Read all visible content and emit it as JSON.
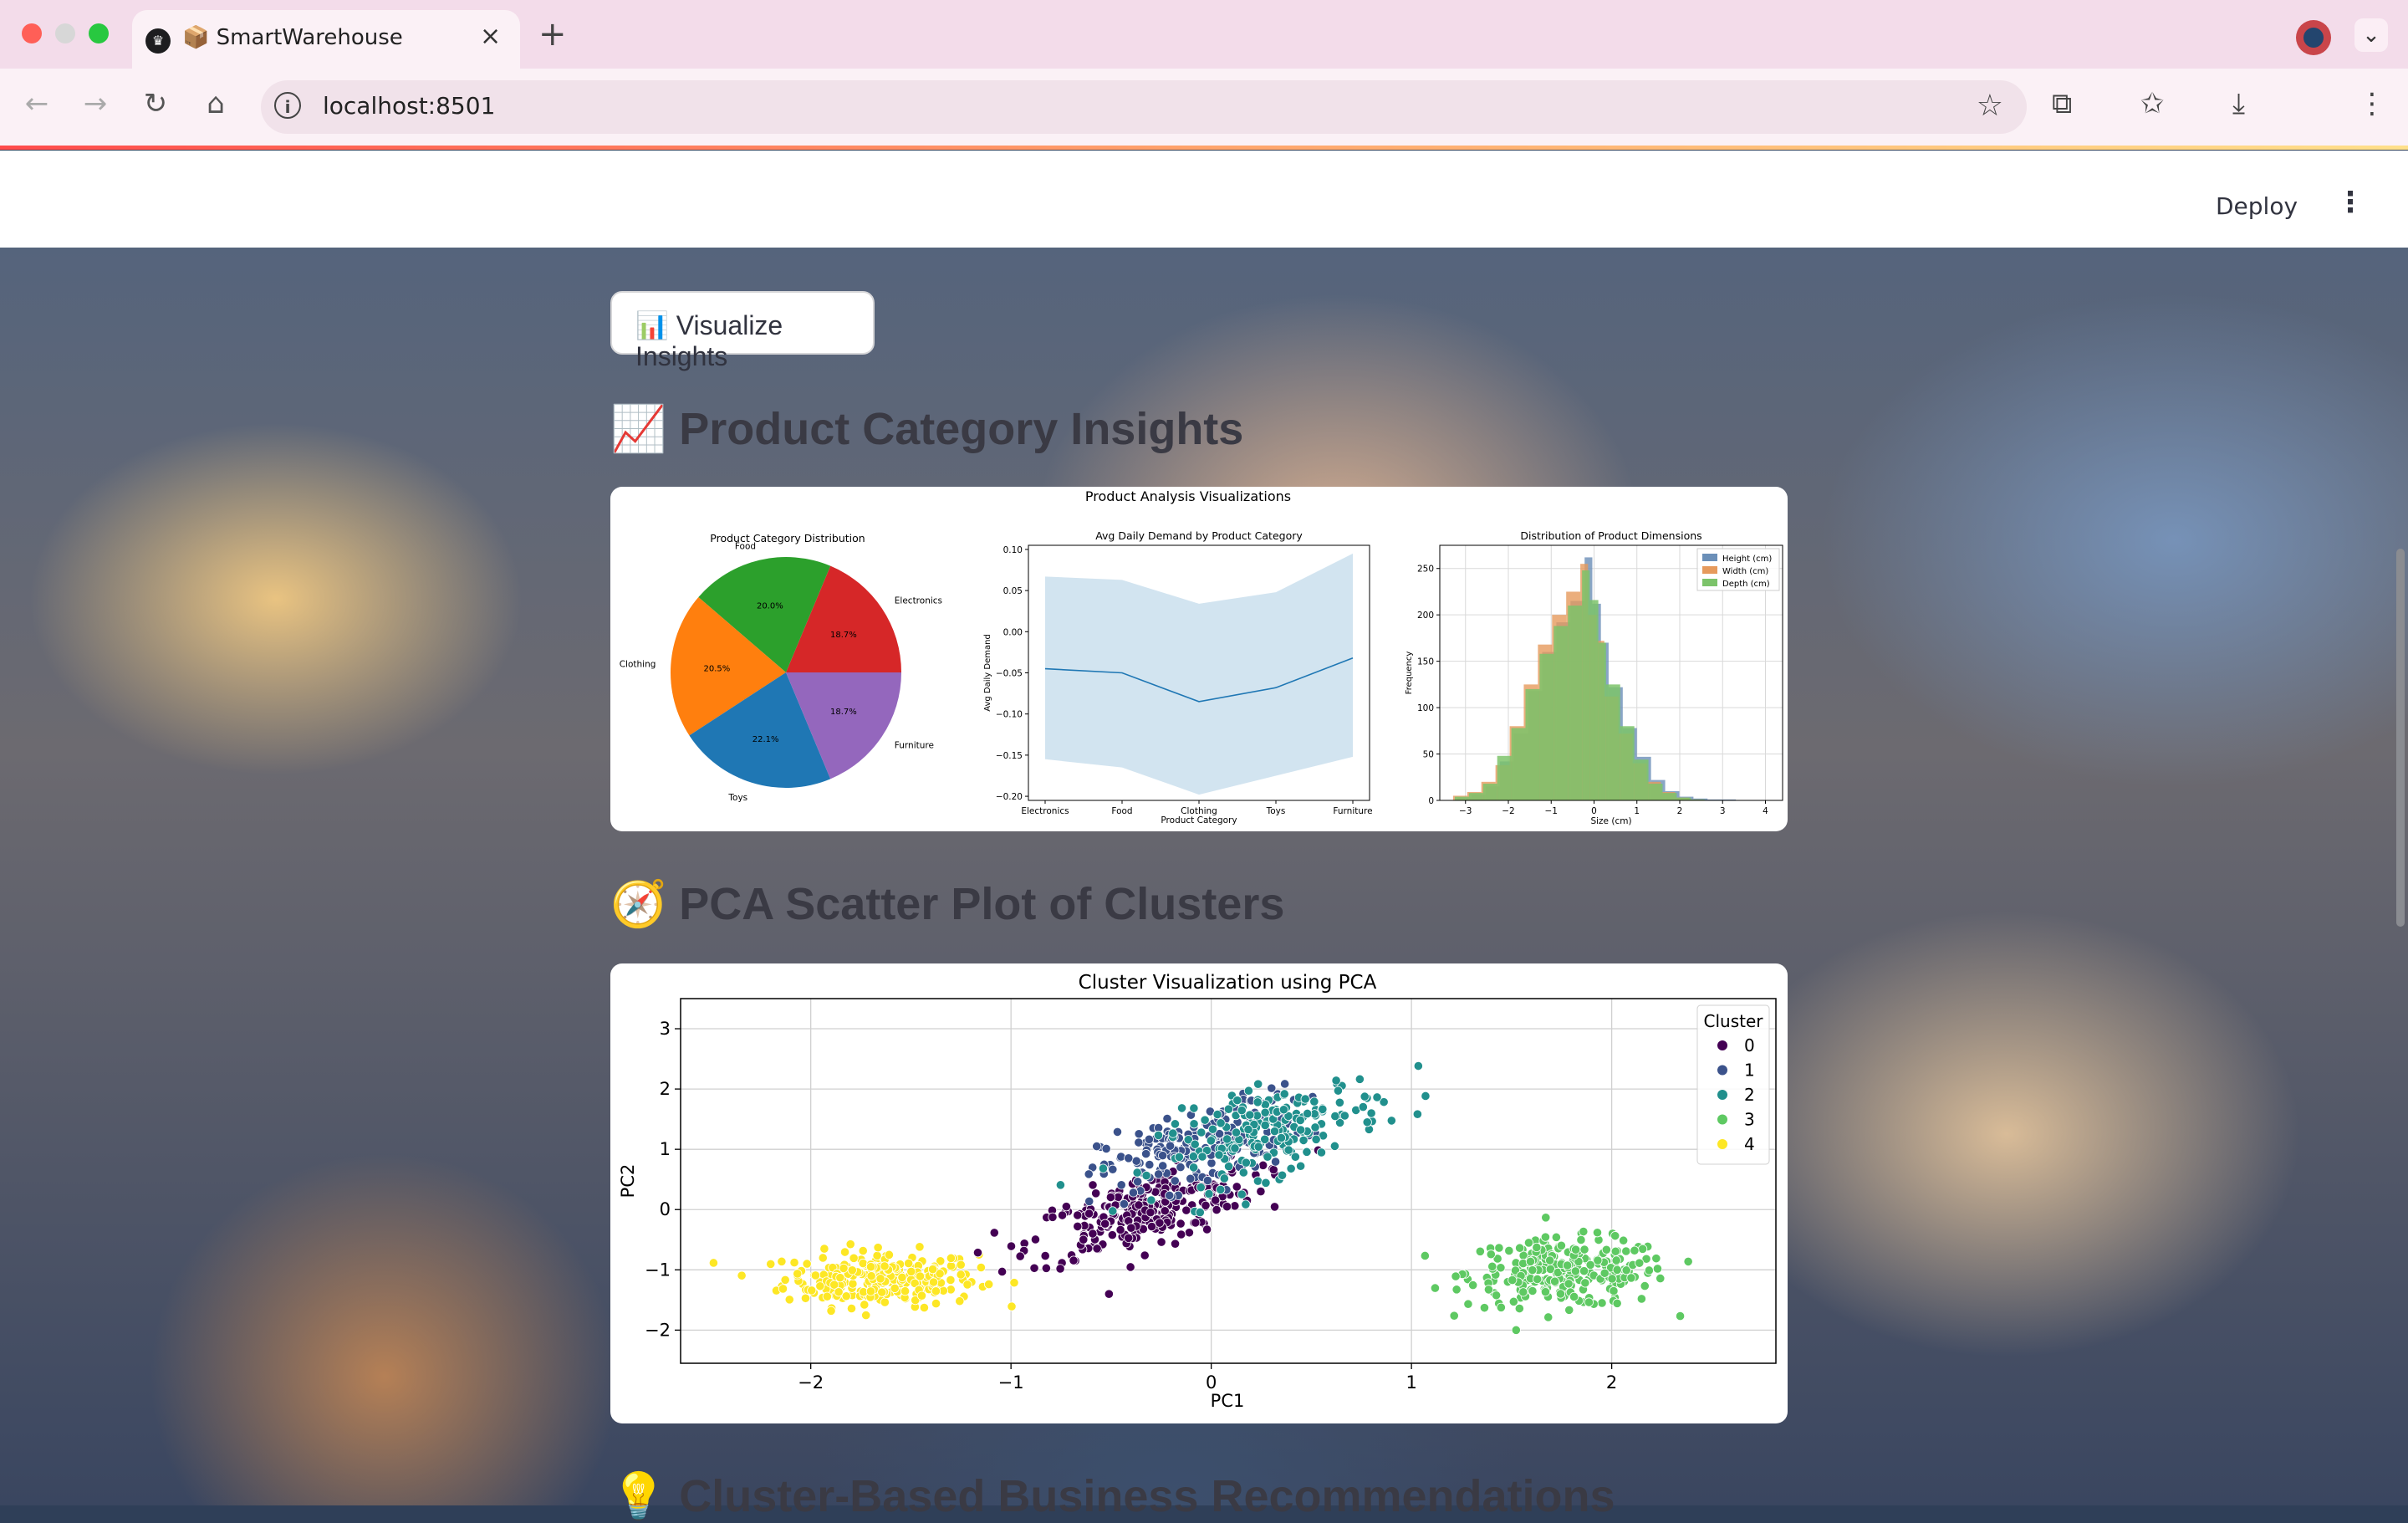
{
  "browser": {
    "tab_title": "📦 SmartWarehouse",
    "url": "localhost:8501"
  },
  "header": {
    "deploy_label": "Deploy"
  },
  "visualize_button": {
    "label": "📊 Visualize Insights"
  },
  "section1": {
    "title": "📈 Product Category Insights"
  },
  "section2": {
    "title": "🧭 PCA Scatter Plot of Clusters"
  },
  "section3": {
    "title": "💡 Cluster-Based Business Recommendations"
  },
  "colors": {
    "streamlit_red": "#ff4b4b",
    "text": "#31333f"
  },
  "chart_data": [
    {
      "type": "pie",
      "suptitle": "Product Analysis Visualizations",
      "title": "Product Category Distribution",
      "categories": [
        "Electronics",
        "Food",
        "Clothing",
        "Toys",
        "Furniture"
      ],
      "values": [
        18.7,
        20.0,
        20.5,
        22.1,
        18.7
      ],
      "colors": [
        "#d62728",
        "#2ca02c",
        "#ff7f0e",
        "#1f77b4",
        "#9467bd"
      ]
    },
    {
      "type": "line",
      "title": "Avg Daily Demand by Product Category",
      "xlabel": "Product Category",
      "ylabel": "Avg Daily Demand",
      "categories": [
        "Electronics",
        "Food",
        "Clothing",
        "Toys",
        "Furniture"
      ],
      "values": [
        -0.045,
        -0.05,
        -0.085,
        -0.068,
        -0.032
      ],
      "ci_low": [
        -0.155,
        -0.165,
        -0.198,
        -0.175,
        -0.152
      ],
      "ci_high": [
        0.067,
        0.063,
        0.034,
        0.048,
        0.095
      ],
      "ylim": [
        -0.205,
        0.105
      ],
      "yticks": [
        -0.2,
        -0.15,
        -0.1,
        -0.05,
        0.0,
        0.05,
        0.1
      ],
      "ytick_labels": [
        "−0.20",
        "−0.15",
        "−0.10",
        "−0.05",
        "0.00",
        "0.05",
        "0.10"
      ]
    },
    {
      "type": "bar",
      "title": "Distribution of Product Dimensions",
      "xlabel": "Size (cm)",
      "ylabel": "Frequency",
      "bin_edges": [
        -3.25,
        -2.92,
        -2.59,
        -2.26,
        -1.93,
        -1.6,
        -1.27,
        -0.94,
        -0.61,
        -0.28,
        -0.1,
        0.1,
        0.28,
        0.61,
        0.94,
        1.27,
        1.6,
        1.93,
        2.26,
        2.59,
        2.92,
        3.25
      ],
      "series": [
        {
          "name": "Height (cm)",
          "color": "#6b8fb8",
          "values": [
            3,
            6,
            15,
            42,
            72,
            118,
            160,
            192,
            215,
            262,
            212,
            170,
            122,
            78,
            47,
            22,
            10,
            4,
            2,
            1,
            1
          ]
        },
        {
          "name": "Width (cm)",
          "color": "#e69a5c",
          "values": [
            5,
            9,
            20,
            38,
            80,
            125,
            168,
            200,
            225,
            255,
            200,
            172,
            112,
            72,
            40,
            20,
            9,
            3,
            1,
            0,
            0
          ]
        },
        {
          "name": "Depth (cm)",
          "color": "#7cc36a",
          "values": [
            4,
            8,
            18,
            48,
            78,
            120,
            158,
            188,
            210,
            248,
            216,
            170,
            125,
            80,
            44,
            18,
            8,
            3,
            1,
            0,
            0
          ]
        }
      ],
      "xlim": [
        -3.6,
        4.4
      ],
      "ylim": [
        0,
        275
      ],
      "xticks": [
        -3,
        -2,
        -1,
        0,
        1,
        2,
        3,
        4
      ],
      "xtick_labels": [
        "−3",
        "−2",
        "−1",
        "0",
        "1",
        "2",
        "3",
        "4"
      ],
      "yticks": [
        0,
        50,
        100,
        150,
        200,
        250
      ]
    },
    {
      "type": "scatter",
      "title": "Cluster Visualization using PCA",
      "xlabel": "PC1",
      "ylabel": "PC2",
      "xlim": [
        -2.65,
        2.82
      ],
      "ylim": [
        -2.55,
        3.5
      ],
      "xticks": [
        -2,
        -1,
        0,
        1,
        2
      ],
      "xtick_labels": [
        "−2",
        "−1",
        "0",
        "1",
        "2"
      ],
      "yticks": [
        -2,
        -1,
        0,
        1,
        2,
        3
      ],
      "ytick_labels": [
        "−2",
        "−1",
        "0",
        "1",
        "2",
        "3"
      ],
      "legend_title": "Cluster",
      "legend_location": "top-right",
      "clusters": [
        {
          "name": "0",
          "color": "#440154",
          "center": [
            -0.35,
            -0.05
          ],
          "spread": [
            0.28,
            0.3
          ],
          "n": 260
        },
        {
          "name": "1",
          "color": "#3b528b",
          "center": [
            -0.05,
            1.05
          ],
          "spread": [
            0.25,
            0.32
          ],
          "n": 200
        },
        {
          "name": "2",
          "color": "#21908d",
          "center": [
            0.3,
            1.3
          ],
          "spread": [
            0.28,
            0.35
          ],
          "n": 200
        },
        {
          "name": "3",
          "color": "#5ec962",
          "center": [
            1.78,
            -1.05
          ],
          "spread": [
            0.25,
            0.28
          ],
          "n": 260
        },
        {
          "name": "4",
          "color": "#fde725",
          "center": [
            -1.65,
            -1.15
          ],
          "spread": [
            0.24,
            0.23
          ],
          "n": 250
        }
      ]
    }
  ]
}
